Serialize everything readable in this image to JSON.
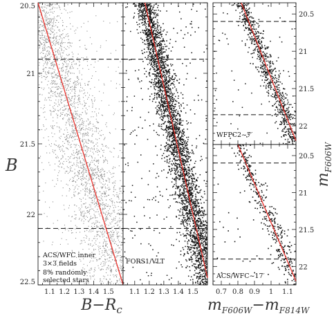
{
  "chart_data": [
    {
      "panel": "acs-wfc-inner",
      "type": "scatter",
      "x_tick_labels": [
        "1.1",
        "1.2",
        "1.3",
        "1.4",
        "1.5"
      ],
      "y_tick_labels": [
        "20.5",
        "21",
        "21.5",
        "22",
        "22.5"
      ],
      "xlim": [
        1.02,
        1.6
      ],
      "ylim": [
        22.5,
        20.5
      ],
      "ridge_line": {
        "x": [
          1.02,
          1.6
        ],
        "y": [
          20.5,
          22.5
        ]
      },
      "dashed_lines_y": [
        20.9,
        22.1
      ],
      "annotation": [
        "ACS/WFC inner",
        "3×3 fields",
        "8% randomly",
        "selected stars"
      ],
      "point_color": "#8a8a8a"
    },
    {
      "panel": "fors1-vlt",
      "type": "scatter",
      "x_tick_labels": [
        "1.1",
        "1.2",
        "1.3",
        "1.4",
        "1.5"
      ],
      "xlim": [
        1.02,
        1.6
      ],
      "ylim": [
        22.5,
        20.5
      ],
      "ridge_line": {
        "x": [
          1.17,
          1.6
        ],
        "y": [
          20.5,
          22.45
        ]
      },
      "dashed_lines_y": [
        20.9,
        22.1
      ],
      "annotation": [
        "FORS1/VLT"
      ],
      "point_color": "#111111"
    },
    {
      "panel": "wfpc2",
      "type": "scatter",
      "y_tick_labels": [
        "20.5",
        "21",
        "21.5",
        "22"
      ],
      "xlim": [
        0.65,
        1.15
      ],
      "ylim": [
        22.25,
        20.35
      ],
      "ridge_line": {
        "x": [
          0.82,
          1.15
        ],
        "y": [
          20.35,
          22.2
        ]
      },
      "dashed_lines_y": [
        20.6,
        21.85
      ],
      "annotation": [
        "WFPC2~7′"
      ],
      "point_color": "#111111"
    },
    {
      "panel": "acs-wfc-17",
      "type": "scatter",
      "x_tick_labels": [
        "0.7",
        "0.8",
        "0.9",
        "1",
        "1.1"
      ],
      "y_tick_labels": [
        "20.5",
        "21",
        "21.5",
        "22"
      ],
      "xlim": [
        0.65,
        1.15
      ],
      "ylim": [
        22.25,
        20.35
      ],
      "ridge_line": {
        "x": [
          0.8,
          1.15
        ],
        "y": [
          20.35,
          22.2
        ]
      },
      "dashed_lines_y": [
        20.6,
        21.9
      ],
      "annotation": [
        "ACS/WFC~17′"
      ],
      "point_color": "#111111"
    }
  ],
  "axes": {
    "left_y_title": "B",
    "left_x_title": "B−R",
    "left_x_title_sub": "c",
    "right_x_title": "m",
    "right_x_title_sub1": "F606W",
    "right_x_title_mid": "−m",
    "right_x_title_sub2": "F814W",
    "right_y_title": "m",
    "right_y_title_sub": "F606W"
  },
  "colors": {
    "ridge_line": "#e8302a",
    "frame": "#000000",
    "dash": "#111111"
  }
}
